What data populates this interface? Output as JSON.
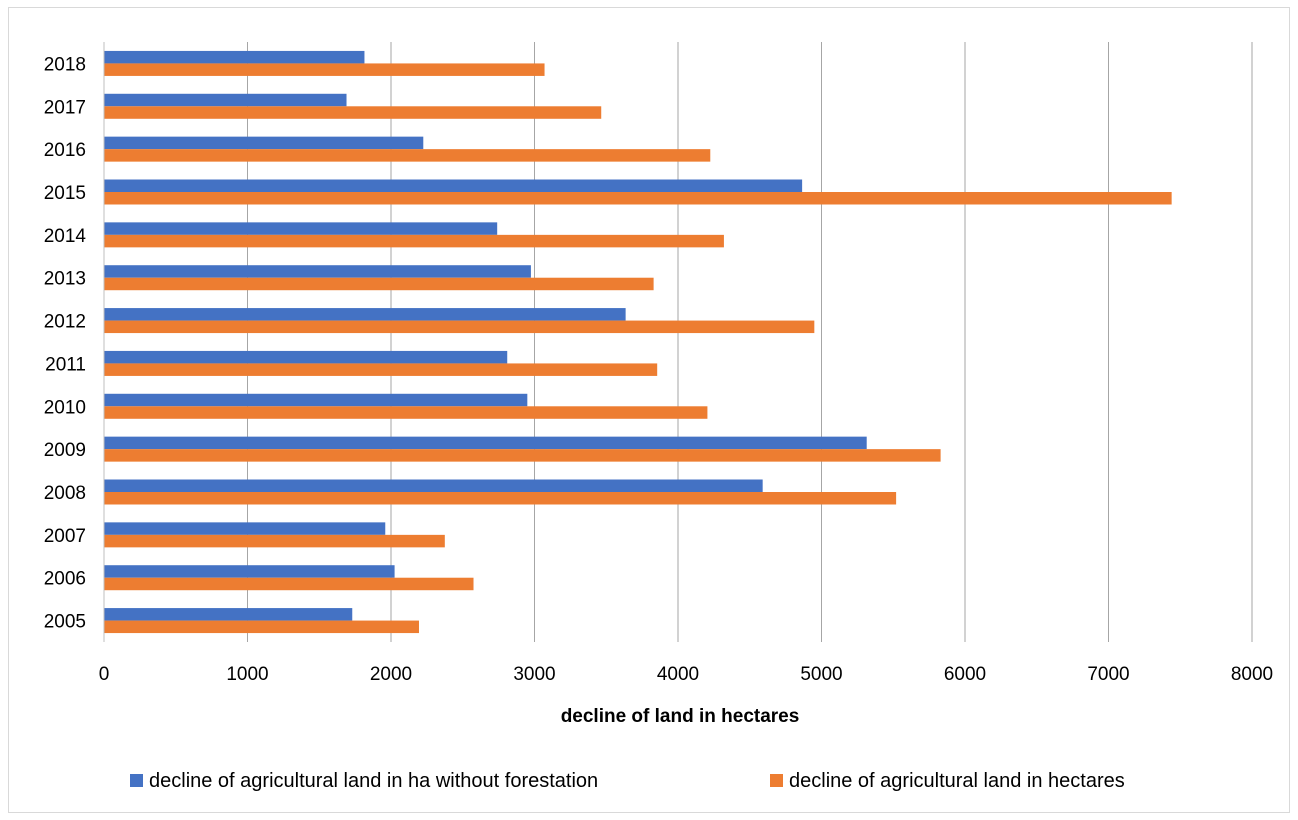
{
  "chart_data": {
    "type": "bar",
    "orientation": "horizontal",
    "categories": [
      "2005",
      "2006",
      "2007",
      "2008",
      "2009",
      "2010",
      "2011",
      "2012",
      "2013",
      "2014",
      "2015",
      "2016",
      "2017",
      "2018"
    ],
    "series": [
      {
        "name": "decline of agricultural land in ha without forestation",
        "color": "#4472C4",
        "values": [
          1730,
          2025,
          1960,
          4590,
          5315,
          2950,
          2810,
          3635,
          2975,
          2740,
          4865,
          2225,
          1690,
          1815
        ]
      },
      {
        "name": "decline of agricultural land in hectares",
        "color": "#ED7D31",
        "values": [
          2195,
          2575,
          2375,
          5520,
          5830,
          4205,
          3855,
          4950,
          3830,
          4320,
          7440,
          4225,
          3465,
          3070
        ]
      }
    ],
    "xlabel": "decline of land in hectares",
    "xlim": [
      0,
      8000
    ],
    "xticks": [
      "0",
      "1000",
      "2000",
      "3000",
      "4000",
      "5000",
      "6000",
      "7000",
      "8000"
    ],
    "grid": "vertical",
    "legend_position": "bottom"
  }
}
